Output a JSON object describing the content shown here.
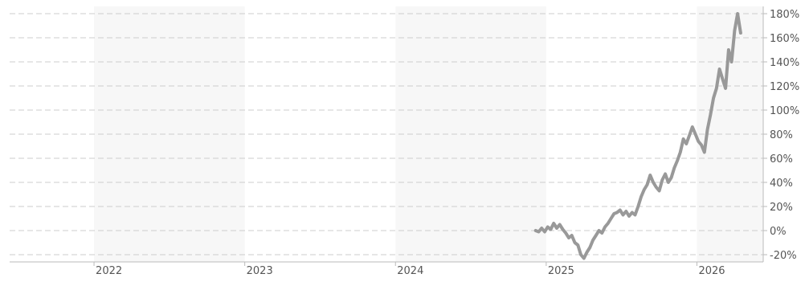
{
  "chart_data": {
    "type": "line",
    "title": "",
    "xlabel": "",
    "ylabel": "",
    "x_tick_labels": [
      "2022",
      "2023",
      "2024",
      "2025",
      "2026"
    ],
    "y_tick_labels": [
      "180%",
      "160%",
      "140%",
      "120%",
      "100%",
      "80%",
      "60%",
      "40%",
      "20%",
      "0%",
      "-20%"
    ],
    "y_ticks": [
      180,
      160,
      140,
      120,
      100,
      80,
      60,
      40,
      20,
      0,
      -20
    ],
    "xlim": [
      2021.44,
      2026.44
    ],
    "ylim": [
      -26,
      186
    ],
    "grid": true,
    "alternate_year_shading": true,
    "colors": {
      "line": "#999999",
      "shade": "#f7f7f7",
      "grid": "#cccccc",
      "axis": "#bbbbbb",
      "text": "#555555"
    },
    "series": [
      {
        "points": [
          [
            2024.93,
            0
          ],
          [
            2024.95,
            -1
          ],
          [
            2024.97,
            2
          ],
          [
            2024.99,
            -1
          ],
          [
            2025.01,
            3
          ],
          [
            2025.03,
            1
          ],
          [
            2025.05,
            6
          ],
          [
            2025.07,
            2
          ],
          [
            2025.09,
            5
          ],
          [
            2025.11,
            1
          ],
          [
            2025.13,
            -2
          ],
          [
            2025.15,
            -6
          ],
          [
            2025.17,
            -4
          ],
          [
            2025.19,
            -10
          ],
          [
            2025.21,
            -12
          ],
          [
            2025.23,
            -20
          ],
          [
            2025.25,
            -23
          ],
          [
            2025.27,
            -18
          ],
          [
            2025.29,
            -14
          ],
          [
            2025.31,
            -8
          ],
          [
            2025.33,
            -4
          ],
          [
            2025.35,
            0
          ],
          [
            2025.37,
            -2
          ],
          [
            2025.39,
            3
          ],
          [
            2025.41,
            6
          ],
          [
            2025.43,
            10
          ],
          [
            2025.45,
            14
          ],
          [
            2025.47,
            15
          ],
          [
            2025.49,
            17
          ],
          [
            2025.51,
            13
          ],
          [
            2025.53,
            16
          ],
          [
            2025.55,
            12
          ],
          [
            2025.57,
            15
          ],
          [
            2025.59,
            13
          ],
          [
            2025.61,
            20
          ],
          [
            2025.63,
            28
          ],
          [
            2025.65,
            34
          ],
          [
            2025.67,
            38
          ],
          [
            2025.69,
            46
          ],
          [
            2025.71,
            40
          ],
          [
            2025.73,
            36
          ],
          [
            2025.75,
            33
          ],
          [
            2025.77,
            42
          ],
          [
            2025.79,
            47
          ],
          [
            2025.81,
            40
          ],
          [
            2025.83,
            44
          ],
          [
            2025.85,
            52
          ],
          [
            2025.87,
            58
          ],
          [
            2025.89,
            65
          ],
          [
            2025.91,
            76
          ],
          [
            2025.93,
            72
          ],
          [
            2025.95,
            79
          ],
          [
            2025.97,
            86
          ],
          [
            2025.99,
            80
          ],
          [
            2026.01,
            74
          ],
          [
            2026.03,
            71
          ],
          [
            2026.05,
            65
          ],
          [
            2026.07,
            84
          ],
          [
            2026.09,
            96
          ],
          [
            2026.11,
            110
          ],
          [
            2026.13,
            118
          ],
          [
            2026.15,
            134
          ],
          [
            2026.17,
            126
          ],
          [
            2026.19,
            118
          ],
          [
            2026.21,
            150
          ],
          [
            2026.23,
            140
          ],
          [
            2026.25,
            166
          ],
          [
            2026.27,
            180
          ],
          [
            2026.29,
            164
          ]
        ]
      }
    ]
  }
}
